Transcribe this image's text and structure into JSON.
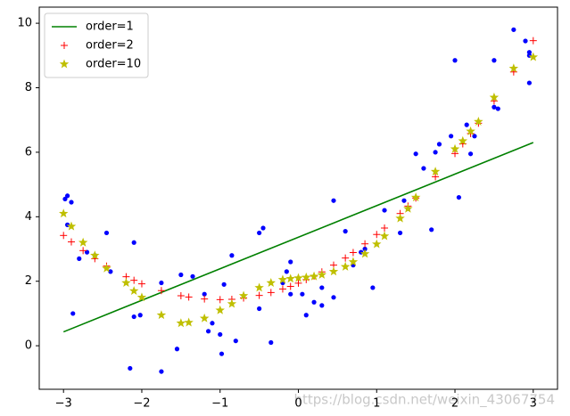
{
  "chart_data": {
    "type": "line",
    "xlim": [
      -3.31,
      3.31
    ],
    "ylim": [
      -1.35,
      10.5
    ],
    "xticks": [
      {
        "value": -3,
        "label": "−3"
      },
      {
        "value": -2,
        "label": "−2"
      },
      {
        "value": -1,
        "label": "−1"
      },
      0,
      1,
      2,
      3
    ],
    "yticks": [
      0,
      2,
      4,
      6,
      8,
      10
    ],
    "legend": "upper left",
    "watermark": "https://blog.csdn.net/weixin_43067754",
    "points": {
      "color": "#0000ff",
      "x": [
        -2.98,
        -2.95,
        -2.9,
        -2.95,
        -2.88,
        -2.8,
        -2.7,
        -2.6,
        -2.45,
        -2.4,
        -2.15,
        -2.1,
        -2.1,
        -2.02,
        -1.75,
        -1.75,
        -1.55,
        -1.5,
        -1.35,
        -1.2,
        -1.15,
        -1.1,
        -1.0,
        -0.98,
        -0.95,
        -0.85,
        -0.8,
        -0.5,
        -0.5,
        -0.45,
        -0.35,
        -0.2,
        -0.15,
        -0.1,
        -0.1,
        0.05,
        0.1,
        0.2,
        0.3,
        0.3,
        0.45,
        0.45,
        0.6,
        0.7,
        0.8,
        0.85,
        0.95,
        1.1,
        1.3,
        1.35,
        1.4,
        1.5,
        1.6,
        1.7,
        1.75,
        1.8,
        1.95,
        2.0,
        2.05,
        2.15,
        2.2,
        2.25,
        2.5,
        2.55,
        2.5,
        2.75,
        2.95,
        2.95,
        2.9,
        2.95
      ],
      "values": [
        4.55,
        4.65,
        4.45,
        3.75,
        1.0,
        2.7,
        2.9,
        2.8,
        3.5,
        2.3,
        -0.7,
        3.2,
        0.9,
        0.95,
        1.95,
        -0.8,
        -0.1,
        2.2,
        2.15,
        1.6,
        0.45,
        0.7,
        0.35,
        -0.25,
        1.9,
        2.8,
        0.15,
        1.15,
        3.5,
        3.65,
        0.1,
        1.95,
        2.3,
        2.6,
        1.6,
        1.6,
        0.95,
        1.35,
        1.25,
        1.8,
        1.5,
        4.5,
        3.55,
        2.5,
        2.9,
        3.0,
        1.8,
        4.2,
        3.5,
        4.5,
        4.25,
        5.95,
        5.5,
        3.6,
        6.0,
        6.25,
        6.5,
        8.85,
        4.6,
        6.85,
        5.95,
        6.5,
        7.4,
        7.35,
        8.85,
        9.8,
        8.15,
        9.0,
        9.45,
        9.1
      ]
    },
    "series": [
      {
        "name": "order=1",
        "color": "#008000",
        "style": "line",
        "x": [
          -3,
          3
        ],
        "values": [
          0.43,
          6.3
        ]
      },
      {
        "name": "order=2",
        "color": "#ff0000",
        "style": "plus",
        "x": [
          -3,
          -2.9,
          -2.75,
          -2.6,
          -2.45,
          -2.2,
          -2.1,
          -2,
          -1.75,
          -1.5,
          -1.4,
          -1.2,
          -1,
          -0.85,
          -0.7,
          -0.5,
          -0.35,
          -0.2,
          -0.1,
          0,
          0.1,
          0.2,
          0.3,
          0.45,
          0.6,
          0.7,
          0.85,
          1,
          1.1,
          1.3,
          1.4,
          1.5,
          1.75,
          2,
          2.1,
          2.2,
          2.3,
          2.5,
          2.75,
          3
        ],
        "values": [
          3.42,
          3.22,
          2.95,
          2.7,
          2.47,
          2.14,
          2.03,
          1.92,
          1.71,
          1.55,
          1.51,
          1.45,
          1.43,
          1.44,
          1.48,
          1.56,
          1.65,
          1.76,
          1.84,
          1.94,
          2.05,
          2.16,
          2.29,
          2.5,
          2.72,
          2.89,
          3.16,
          3.45,
          3.65,
          4.1,
          4.33,
          4.58,
          5.24,
          5.96,
          6.26,
          6.58,
          6.9,
          7.59,
          8.49,
          9.46
        ]
      },
      {
        "name": "order=10",
        "color": "#bfbf00",
        "style": "star",
        "x": [
          -3,
          -2.9,
          -2.75,
          -2.6,
          -2.45,
          -2.2,
          -2.1,
          -2,
          -1.75,
          -1.5,
          -1.4,
          -1.2,
          -1,
          -0.85,
          -0.7,
          -0.5,
          -0.35,
          -0.2,
          -0.1,
          0,
          0.1,
          0.2,
          0.3,
          0.45,
          0.6,
          0.7,
          0.85,
          1,
          1.1,
          1.3,
          1.4,
          1.5,
          1.75,
          2,
          2.1,
          2.2,
          2.3,
          2.5,
          2.75,
          3
        ],
        "values": [
          4.1,
          3.7,
          3.2,
          2.8,
          2.4,
          1.95,
          1.7,
          1.5,
          0.95,
          0.7,
          0.72,
          0.85,
          1.1,
          1.3,
          1.55,
          1.8,
          1.95,
          2.05,
          2.08,
          2.1,
          2.12,
          2.15,
          2.2,
          2.3,
          2.45,
          2.6,
          2.85,
          3.15,
          3.4,
          3.95,
          4.25,
          4.6,
          5.4,
          6.1,
          6.35,
          6.65,
          6.95,
          7.7,
          8.6,
          8.95
        ]
      }
    ]
  }
}
